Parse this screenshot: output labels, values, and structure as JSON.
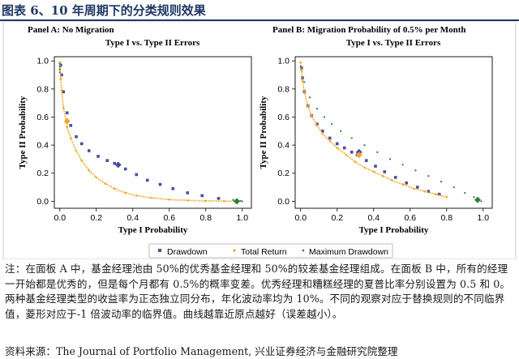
{
  "figure_title": "图表 6、10 年周期下的分类规则效果",
  "note": "注：在面板 A 中，基金经理池由 50%的优秀基金经理和 50%的较差基金经理组成。在面板 B 中，所有的经理一开始都是优秀的，但是每个月都有 0.5%的概率变差。优秀经理和糟糕经理的夏普比率分别设置为 0.5 和 0。两种基金经理类型的收益率为正态独立同分布，年化波动率均为 10%。不同的观察对应于替换规则的不同临界值，菱形对应于-1 倍波动率的临界值。曲线越靠近原点越好（误差越小）。",
  "source": "资料来源：The Journal of Portfolio Management, 兴业证券经济与金融研究院整理",
  "legend": {
    "drawdown": "Drawdown",
    "total_return": "Total Return",
    "max_drawdown": "Maximum Drawdown"
  },
  "colors": {
    "drawdown": "#4b4e9e",
    "total_return": "#f5a623",
    "max_drawdown": "#2e7d3a",
    "title": "#1f3864"
  },
  "chart_data": [
    {
      "type": "scatter",
      "panel_title": "Panel A: No Migration",
      "title": "Type I vs. Type II Errors",
      "xlabel": "Type I Probability",
      "ylabel": "Type II Probability",
      "xlim": [
        -0.03,
        1.05
      ],
      "ylim": [
        -0.05,
        1.03
      ],
      "xticks": [
        0.0,
        0.2,
        0.4,
        0.6,
        0.8,
        1.0
      ],
      "yticks": [
        0.0,
        0.2,
        0.4,
        0.6,
        0.8,
        1.0
      ],
      "series": [
        {
          "name": "Drawdown",
          "marker": "square",
          "x": [
            0.005,
            0.01,
            0.02,
            0.04,
            0.06,
            0.09,
            0.12,
            0.16,
            0.21,
            0.26,
            0.3,
            0.36,
            0.42,
            0.48,
            0.55,
            0.62,
            0.7,
            0.78,
            0.87
          ],
          "y": [
            0.97,
            0.9,
            0.78,
            0.63,
            0.54,
            0.46,
            0.41,
            0.36,
            0.32,
            0.29,
            0.27,
            0.23,
            0.19,
            0.15,
            0.12,
            0.09,
            0.06,
            0.04,
            0.02
          ],
          "diamond": [
            0.32,
            0.26
          ]
        },
        {
          "name": "Total Return",
          "marker": "dot-line",
          "x": [
            0.0,
            0.005,
            0.01,
            0.02,
            0.04,
            0.06,
            0.09,
            0.12,
            0.16,
            0.2,
            0.25,
            0.3,
            0.36,
            0.42,
            0.5,
            0.6,
            0.7,
            0.8,
            0.9,
            0.97
          ],
          "y": [
            0.99,
            0.87,
            0.79,
            0.67,
            0.53,
            0.45,
            0.36,
            0.29,
            0.22,
            0.17,
            0.125,
            0.09,
            0.06,
            0.04,
            0.025,
            0.012,
            0.006,
            0.003,
            0.001,
            0.0
          ],
          "diamond": [
            0.04,
            0.57
          ]
        },
        {
          "name": "Maximum Drawdown",
          "marker": "dot",
          "x": [
            0.0,
            0.0,
            0.0,
            0.0,
            0.95,
            0.97,
            0.99,
            1.0
          ],
          "y": [
            0.98,
            0.96,
            0.94,
            0.92,
            0.01,
            0.005,
            0.003,
            0.0
          ],
          "diamond": [
            0.97,
            0.0
          ]
        }
      ]
    },
    {
      "type": "scatter",
      "panel_title": "Panel B: Migration Probability of 0.5% per Month",
      "title": "Type I vs. Type II Errors",
      "xlabel": "Type I Probability",
      "ylabel": "Type II Probability",
      "xlim": [
        -0.03,
        1.05
      ],
      "ylim": [
        -0.05,
        1.03
      ],
      "xticks": [
        0.0,
        0.2,
        0.4,
        0.6,
        0.8,
        1.0
      ],
      "yticks": [
        0.0,
        0.2,
        0.4,
        0.6,
        0.8,
        1.0
      ],
      "series": [
        {
          "name": "Drawdown",
          "marker": "square",
          "x": [
            0.005,
            0.01,
            0.02,
            0.04,
            0.06,
            0.09,
            0.12,
            0.16,
            0.2,
            0.24,
            0.28,
            0.31,
            0.36,
            0.41,
            0.46,
            0.52,
            0.58,
            0.64,
            0.7,
            0.76
          ],
          "y": [
            0.95,
            0.88,
            0.78,
            0.68,
            0.61,
            0.55,
            0.5,
            0.45,
            0.41,
            0.38,
            0.35,
            0.33,
            0.29,
            0.25,
            0.21,
            0.17,
            0.13,
            0.1,
            0.07,
            0.05
          ],
          "diamond": [
            0.32,
            0.35
          ]
        },
        {
          "name": "Total Return",
          "marker": "dot-line",
          "x": [
            0.0,
            0.005,
            0.01,
            0.02,
            0.04,
            0.06,
            0.09,
            0.12,
            0.16,
            0.2,
            0.25,
            0.3,
            0.35,
            0.4,
            0.45,
            0.5,
            0.56,
            0.62,
            0.68,
            0.74,
            0.8
          ],
          "y": [
            0.99,
            0.93,
            0.86,
            0.78,
            0.68,
            0.61,
            0.54,
            0.48,
            0.43,
            0.38,
            0.33,
            0.28,
            0.24,
            0.21,
            0.18,
            0.15,
            0.12,
            0.09,
            0.07,
            0.05,
            0.03
          ],
          "diamond": [
            0.32,
            0.33
          ]
        },
        {
          "name": "Maximum Drawdown",
          "marker": "dot",
          "x": [
            0.0,
            0.02,
            0.05,
            0.09,
            0.13,
            0.17,
            0.22,
            0.28,
            0.35,
            0.42,
            0.49,
            0.56,
            0.63,
            0.7,
            0.77,
            0.84,
            0.9,
            0.95,
            0.97,
            0.99
          ],
          "y": [
            0.96,
            0.85,
            0.74,
            0.66,
            0.6,
            0.55,
            0.5,
            0.45,
            0.4,
            0.35,
            0.3,
            0.26,
            0.22,
            0.18,
            0.14,
            0.1,
            0.06,
            0.03,
            0.01,
            0.0
          ],
          "diamond": [
            0.97,
            0.01
          ]
        }
      ]
    }
  ]
}
